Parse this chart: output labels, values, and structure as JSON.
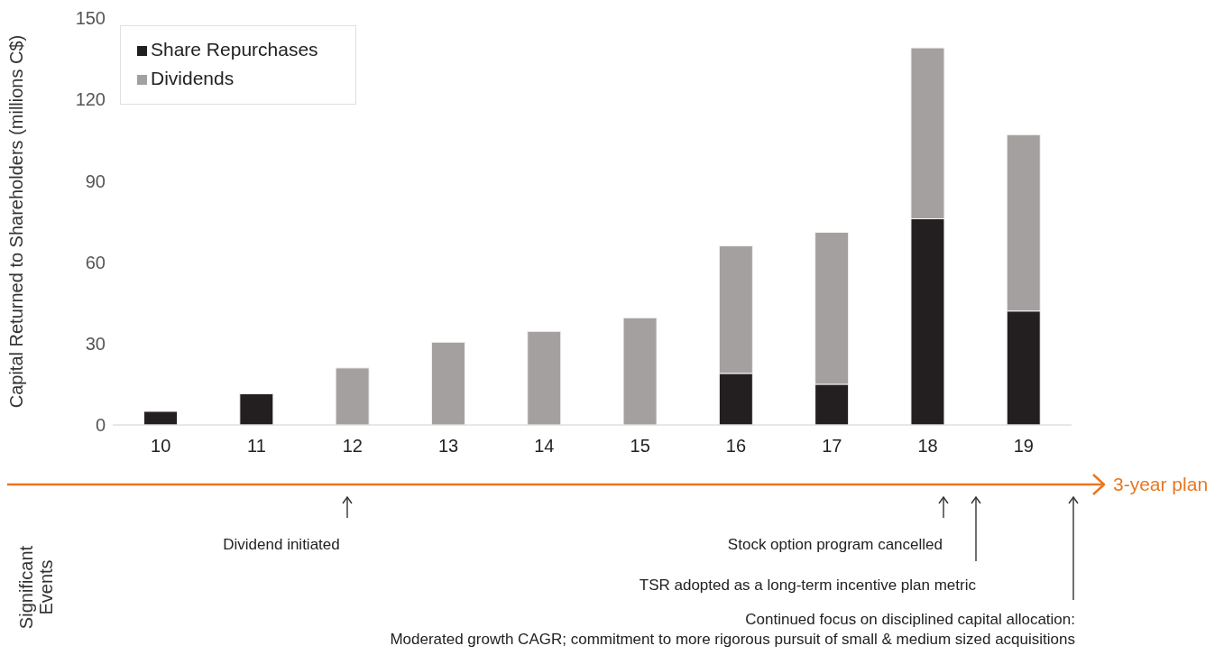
{
  "chart_data": {
    "type": "bar",
    "stacked": true,
    "ylabel": "Capital Returned to Shareholders (millions C$)",
    "categories": [
      "10",
      "11",
      "12",
      "13",
      "14",
      "15",
      "16",
      "17",
      "18",
      "19"
    ],
    "series": [
      {
        "name": "Share Repurchases",
        "color": "#231f20",
        "values": [
          5,
          11.5,
          0,
          0,
          0,
          0,
          19,
          15,
          76,
          42
        ]
      },
      {
        "name": "Dividends",
        "color": "#a4a09f",
        "values": [
          0,
          0,
          21,
          30.5,
          34.5,
          39.5,
          47,
          56,
          63,
          65
        ]
      }
    ],
    "ylim": [
      0,
      150
    ],
    "yticks": [
      0,
      30,
      60,
      90,
      120,
      150
    ],
    "grid": false,
    "legend": "top left",
    "annotations": [
      "3-year plan",
      "Significant Events",
      "Dividend initiated",
      "Stock option program cancelled",
      "TSR adopted as a long-term incentive plan metric",
      "Continued focus on disciplined capital allocation:\nModerated growth CAGR; commitment to more rigorous pursuit of small & medium sized acquisitions"
    ]
  }
}
